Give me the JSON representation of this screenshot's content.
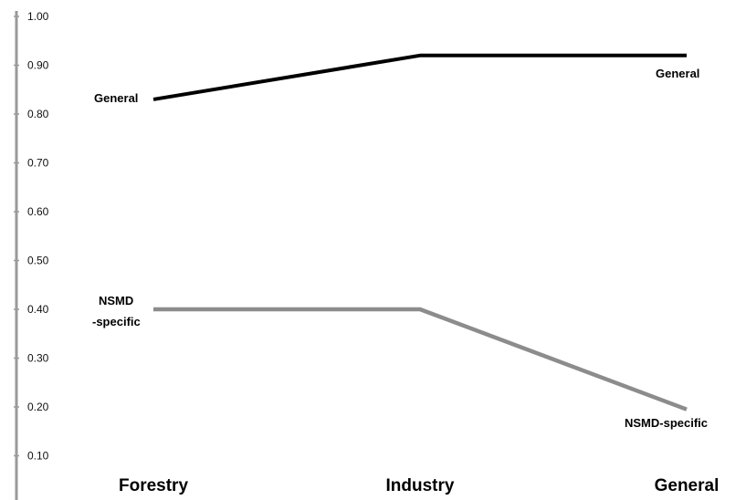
{
  "chart_data": {
    "type": "line",
    "title": "",
    "xlabel": "",
    "ylabel": "",
    "categories": [
      "Forestry",
      "Industry",
      "General"
    ],
    "yticks": [
      "1.00",
      "0.90",
      "0.80",
      "0.70",
      "0.60",
      "0.50",
      "0.40",
      "0.30",
      "0.20",
      "0.10"
    ],
    "ylim": [
      0.06,
      1.0
    ],
    "grid": false,
    "legend": "none",
    "series": [
      {
        "color": "#000000",
        "values": [
          0.83,
          0.92,
          0.92
        ],
        "labels": {
          "start": [
            "General"
          ],
          "end": [
            "General"
          ]
        }
      },
      {
        "color": "#8c8c8c",
        "values": [
          0.4,
          0.4,
          0.195
        ],
        "labels": {
          "start": [
            "NSMD",
            "-specific"
          ],
          "end": [
            "NSMD-specific"
          ]
        }
      }
    ]
  }
}
